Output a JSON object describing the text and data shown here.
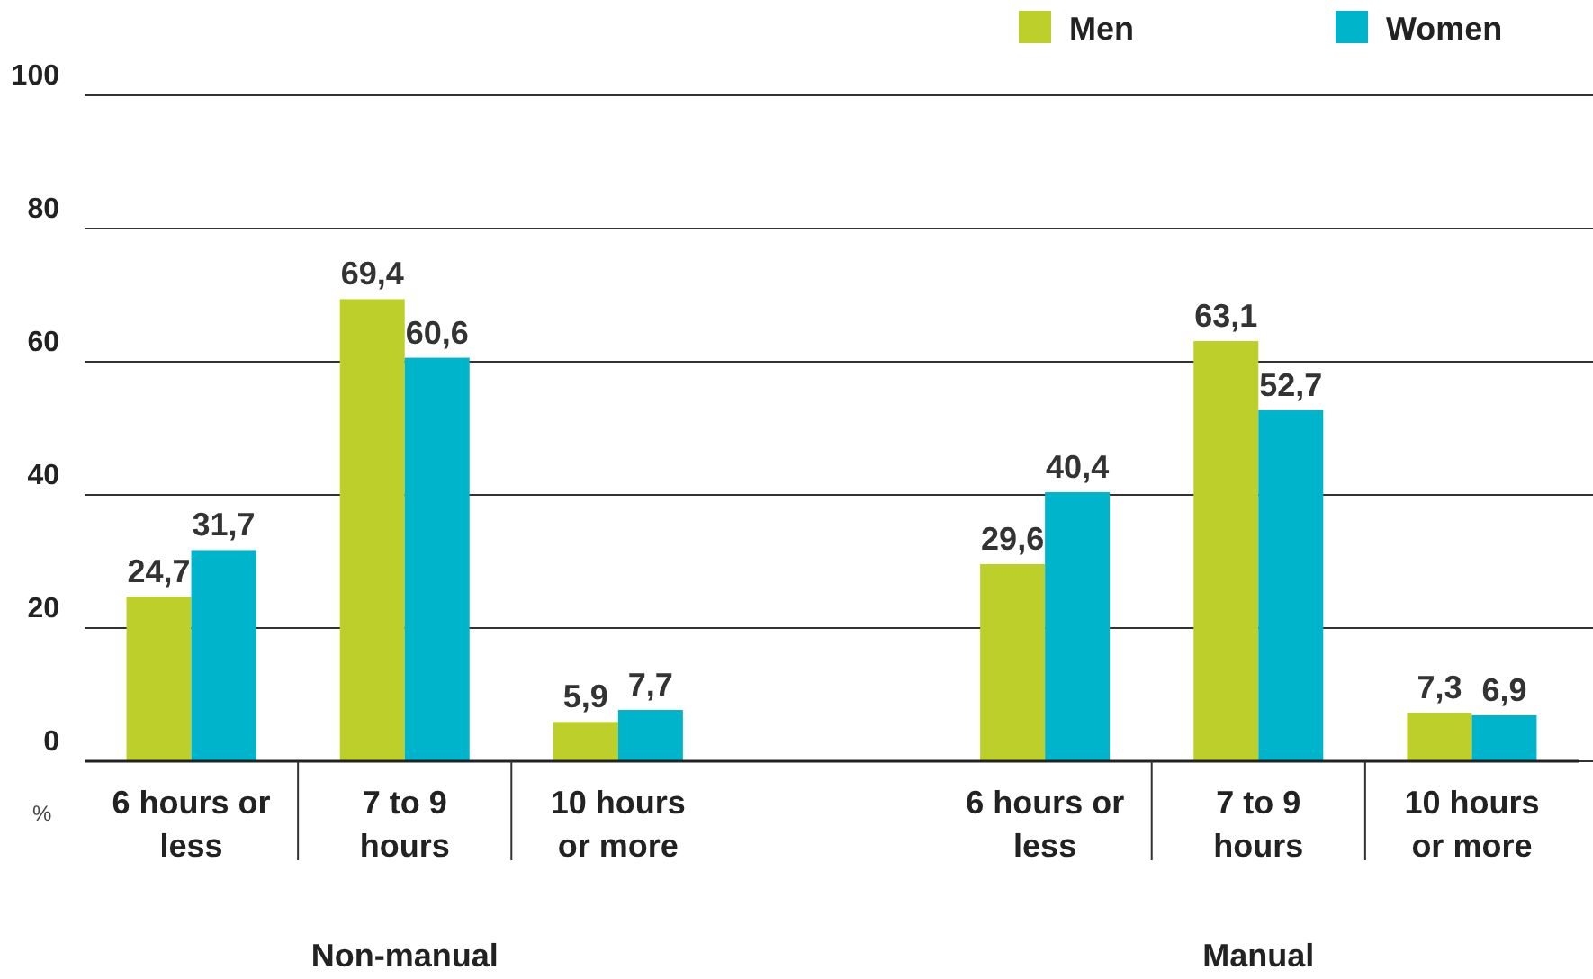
{
  "chart_data": {
    "type": "bar",
    "categories": [
      "6 hours or less",
      "7 to 9 hours",
      "10 hours or more",
      null,
      "6 hours or less",
      "7 to 9 hours",
      "10 hours or more"
    ],
    "series": [
      {
        "name": "Men",
        "color": "#bccf2a",
        "values": [
          24.7,
          69.4,
          5.9,
          null,
          29.6,
          63.1,
          7.3
        ],
        "value_labels": [
          "24,7",
          "69,4",
          "5,9",
          null,
          "29,6",
          "63,1",
          "7,3"
        ]
      },
      {
        "name": "Women",
        "color": "#00b4cc",
        "values": [
          31.7,
          60.6,
          7.7,
          null,
          40.4,
          52.7,
          6.9
        ],
        "value_labels": [
          "31,7",
          "60,6",
          "7,7",
          null,
          "40,4",
          "52,7",
          "6,9"
        ]
      }
    ],
    "ylabel": "%",
    "ylim": [
      0,
      100
    ],
    "yticks": [
      0,
      20,
      40,
      60,
      80,
      100
    ],
    "grid": "y",
    "legend": "top right",
    "annotations": [
      "Non-manual",
      "Manual"
    ]
  }
}
